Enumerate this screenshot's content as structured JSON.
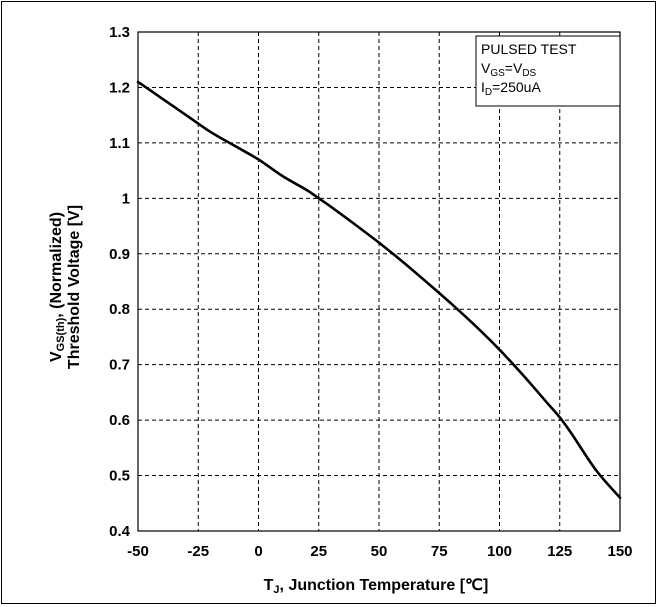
{
  "chart_data": {
    "type": "line",
    "x": [
      -50,
      -40,
      -30,
      -20,
      -10,
      0,
      10,
      20,
      25,
      30,
      40,
      50,
      60,
      70,
      80,
      90,
      100,
      110,
      120,
      125,
      130,
      140,
      150
    ],
    "series": [
      {
        "values": [
          1.21,
          1.18,
          1.15,
          1.12,
          1.095,
          1.07,
          1.04,
          1.015,
          1.0,
          0.985,
          0.953,
          0.92,
          0.885,
          0.848,
          0.81,
          0.77,
          0.727,
          0.68,
          0.63,
          0.605,
          0.575,
          0.51,
          0.46
        ]
      }
    ],
    "x_ticks": [
      "-50",
      "-25",
      "0",
      "25",
      "50",
      "75",
      "100",
      "125",
      "150"
    ],
    "y_ticks": [
      "0.4",
      "0.5",
      "0.6",
      "0.7",
      "0.8",
      "0.9",
      "1",
      "1.1",
      "1.2",
      "1.3"
    ],
    "xlim": [
      -50,
      150
    ],
    "ylim": [
      0.4,
      1.3
    ],
    "xlabel": {
      "main": "T",
      "sub": "J",
      "rest": ", Junction Temperature [℃]"
    },
    "ylabel": {
      "line1_main": "V",
      "line1_sub": "GS(th)",
      "line1_rest": ", (Normalized)",
      "line2": "Threshold Voltage [V]"
    },
    "legend": {
      "line1": "PULSED TEST",
      "line2_a": "V",
      "line2_a_sub": "GS",
      "line2_b": "=V",
      "line2_b_sub": "DS",
      "line3_a": "I",
      "line3_a_sub": "D",
      "line3_b": "=250uA",
      "placement": "top-right"
    },
    "grid": true
  },
  "colors": {
    "line": "#000000",
    "grid": "#000000",
    "background": "#ffffff"
  }
}
